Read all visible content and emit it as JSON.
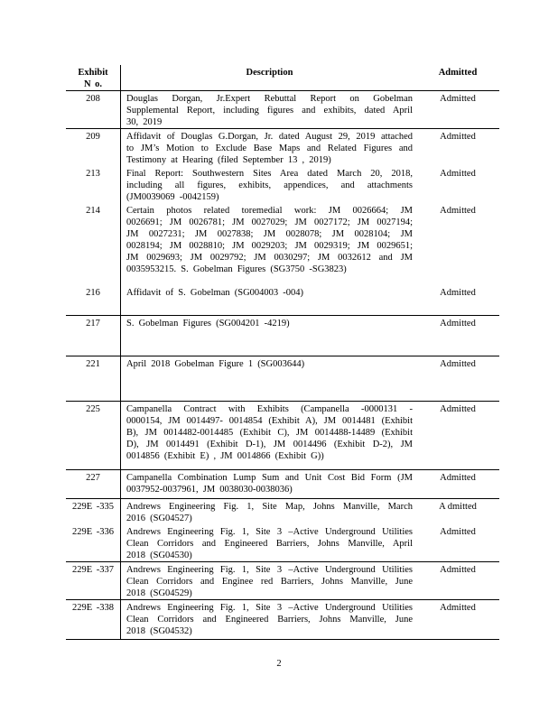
{
  "table": {
    "header": {
      "exhibit_line1": "Exhibit",
      "exhibit_line2": "N o.",
      "description": "Description",
      "admitted": "Admitted"
    },
    "rows": [
      {
        "no": "208",
        "desc_lines": [
          "Douglas Dorgan, Jr.Expert Rebuttal Report on Gobelman",
          "Supplemental Report, including figures and exhibits, dated April",
          "30, 2019"
        ],
        "admitted": "Admitted",
        "divider_above": true,
        "min_height": 41
      },
      {
        "no": "209",
        "desc_lines": [
          "Affidavit of Douglas G.Dorgan, Jr. dated August 29, 2019 attached",
          "to JM’s Motion to Exclude Base Maps and Related Figures and",
          "Testimony at Hearing (filed September 13 , 2019)"
        ],
        "admitted": "Admitted",
        "divider_above": true,
        "min_height": 40
      },
      {
        "no": "213",
        "desc_lines": [
          "Final Report: Southwestern Sites Area dated March 20, 2018,",
          "including all figures, exhibits, appendices, and attachments",
          "(JM0039069 -0042159)"
        ],
        "admitted": "Admitted",
        "divider_above": false,
        "min_height": 40
      },
      {
        "no": "214",
        "desc_lines": [
          "Certain photos related toremedial work: JM 0026664; JM",
          "0026691; JM 0026781; JM 0027029; JM 0027172; JM 0027194;",
          "JM 0027231; JM 0027838; JM 0028078; JM 0028104; JM",
          "0028194; JM 0028810; JM 0029203; JM 0029319; JM 0029651;",
          "JM 0029693; JM 0029792; JM 0030297; JM 0032612 and JM",
          "0035953215. S. Gobelman Figures (SG3750 -SG3823)"
        ],
        "admitted": "Admitted",
        "divider_above": false,
        "min_height": 91
      },
      {
        "no": "216",
        "desc_lines": [
          "Affidavit of S. Gobelman (SG004003 -004)"
        ],
        "admitted": "Admitted",
        "divider_above": false,
        "min_height": 33
      },
      {
        "no": "217",
        "desc_lines": [
          "S. Gobelman Figures (SG004201 -4219)"
        ],
        "admitted": "Admitted",
        "divider_above": true,
        "min_height": 45
      },
      {
        "no": "221",
        "desc_lines": [
          "April 2018 Gobelman Figure 1 (SG003644)"
        ],
        "admitted": "Admitted",
        "divider_above": true,
        "min_height": 50
      },
      {
        "no": "225",
        "desc_lines": [
          "Campanella Contract with Exhibits (Campanella -0000131 -",
          "0000154, JM 0014497- 0014854 (Exhibit A), JM 0014481 (Exhibit",
          "B), JM 0014482-0014485 (Exhibit C), JM 0014488-14489 (Exhibit",
          "D), JM 0014491 (Exhibit D-1), JM 0014496 (Exhibit D-2), JM",
          "0014856 (Exhibit E) , JM 0014866 (Exhibit G))"
        ],
        "admitted": "Admitted",
        "divider_above": true,
        "min_height": 76
      },
      {
        "no": "227",
        "desc_lines": [
          "Campanella Combination Lump Sum and Unit Cost Bid Form (JM",
          "0037952-0037961, JM 0038030-0038036)"
        ],
        "admitted": "Admitted",
        "divider_above": true,
        "min_height": 32
      },
      {
        "no": "229E -335",
        "desc_lines": [
          "Andrews Engineering Fig. 1, Site Map, Johns Manville, March",
          "2016 (SG04527)"
        ],
        "admitted": "A dmitted",
        "divider_above": true,
        "min_height": 27
      },
      {
        "no": "229E -336",
        "desc_lines": [
          "Andrews Engineering Fig. 1, Site 3 –Active Underground Utilities",
          "Clean Corridors and Engineered Barriers, Johns Manville, April",
          "2018 (SG04530)"
        ],
        "admitted": "Admitted",
        "divider_above": false,
        "min_height": 41
      },
      {
        "no": "229E -337",
        "desc_lines": [
          "Andrews Engineering Fig. 1, Site 3 –Active Underground Utilities",
          "Clean Corridors and Enginee red Barriers, Johns Manville, June",
          "2018 (SG04529)"
        ],
        "admitted": "Admitted",
        "divider_above": true,
        "min_height": 40
      },
      {
        "no": "229E -338",
        "desc_lines": [
          "Andrews Engineering Fig. 1, Site 3 –Active Underground Utilities",
          "Clean Corridors and Engineered Barriers, Johns Manville, June",
          "2018 (SG04532)"
        ],
        "admitted": "Admitted",
        "divider_above": true,
        "min_height": 44
      }
    ]
  },
  "page_number": "2"
}
